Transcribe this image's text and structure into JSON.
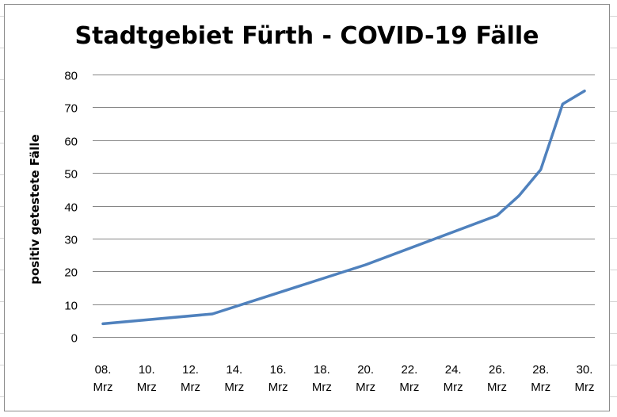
{
  "chart_data": {
    "type": "line",
    "title": "Stadtgebiet Fürth - COVID-19 Fälle",
    "xlabel": "",
    "ylabel": "positiv getestete Fälle",
    "ylim": [
      0,
      80
    ],
    "yticks": [
      "0",
      "10",
      "20",
      "30",
      "40",
      "50",
      "60",
      "70",
      "80"
    ],
    "xlim": [
      "08. Mrz",
      "30. Mrz"
    ],
    "xtick_labels": [
      [
        "08.",
        "Mrz"
      ],
      [
        "10.",
        "Mrz"
      ],
      [
        "12.",
        "Mrz"
      ],
      [
        "14.",
        "Mrz"
      ],
      [
        "16.",
        "Mrz"
      ],
      [
        "18.",
        "Mrz"
      ],
      [
        "20.",
        "Mrz"
      ],
      [
        "22.",
        "Mrz"
      ],
      [
        "24.",
        "Mrz"
      ],
      [
        "26.",
        "Mrz"
      ],
      [
        "28.",
        "Mrz"
      ],
      [
        "30.",
        "Mrz"
      ]
    ],
    "grid": true,
    "legend": "none",
    "series": [
      {
        "color": "#4f81bd",
        "points": [
          {
            "x": "08. Mrz",
            "y": 4
          },
          {
            "x": "13. Mrz",
            "y": 7
          },
          {
            "x": "20. Mrz",
            "y": 22
          },
          {
            "x": "26. Mrz",
            "y": 37
          },
          {
            "x": "27. Mrz",
            "y": 43
          },
          {
            "x": "28. Mrz",
            "y": 51
          },
          {
            "x": "29. Mrz",
            "y": 71
          },
          {
            "x": "30. Mrz",
            "y": 75
          }
        ]
      }
    ]
  }
}
